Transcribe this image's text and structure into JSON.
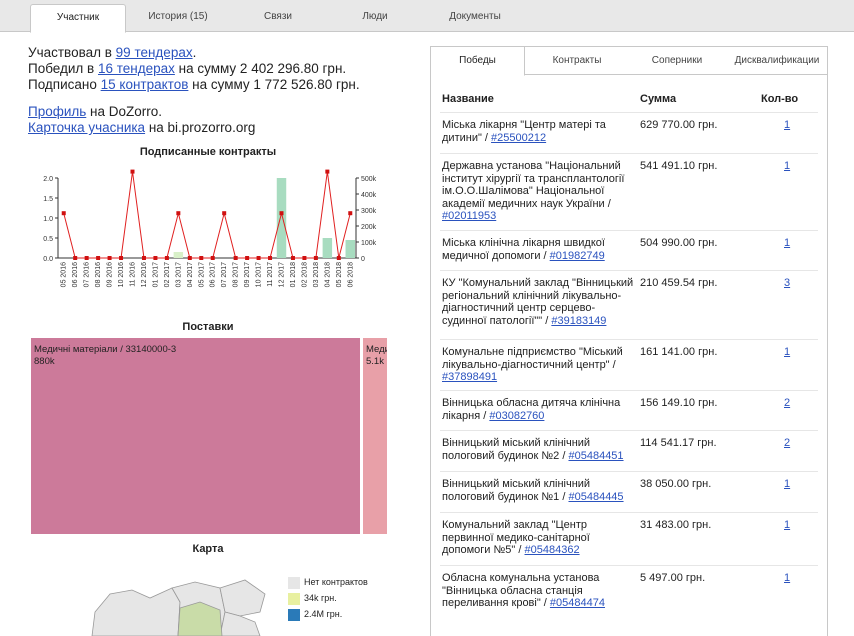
{
  "top_tabs": [
    "Участник",
    "История (15)",
    "Связи",
    "Люди",
    "Документы"
  ],
  "summary": {
    "participated_prefix": "Участвовал в ",
    "participated_link": "99 тендерах",
    "participated_suffix": ".",
    "won_prefix": "Победил в ",
    "won_link": "16 тендерах",
    "won_suffix": " на сумму 2 402 296.80 грн.",
    "signed_prefix": "Подписано ",
    "signed_link": "15 контрактов",
    "signed_suffix": " на сумму 1 772 526.80 грн."
  },
  "links": {
    "profile_link": "Профиль",
    "profile_suffix": " на DoZorro.",
    "card_link": "Карточка учасника",
    "card_suffix": " на bi.prozorro.org"
  },
  "titles": {
    "contracts_chart": "Подписанные контракты",
    "supplies": "Поставки",
    "map": "Карта"
  },
  "chart_data": {
    "type": "bar",
    "categories": [
      "05 2016",
      "06 2016",
      "07 2016",
      "08 2016",
      "09 2016",
      "10 2016",
      "11 2016",
      "12 2016",
      "01 2017",
      "02 2017",
      "03 2017",
      "04 2017",
      "05 2017",
      "06 2017",
      "07 2017",
      "08 2017",
      "09 2017",
      "10 2017",
      "11 2017",
      "12 2017",
      "01 2018",
      "02 2018",
      "03 2018",
      "04 2018",
      "05 2018",
      "06 2018"
    ],
    "series": [
      {
        "type": "bar",
        "axis": "left",
        "values": [
          0,
          0,
          0,
          0,
          0,
          0,
          0,
          0,
          0,
          0,
          0.15,
          0,
          0,
          0,
          0,
          0,
          0,
          0,
          0,
          2,
          0,
          0,
          0,
          0.5,
          0,
          0.45
        ]
      },
      {
        "type": "line",
        "axis": "right",
        "values": [
          280000,
          0,
          0,
          0,
          0,
          0,
          540000,
          0,
          0,
          0,
          280000,
          0,
          0,
          0,
          280000,
          0,
          0,
          0,
          0,
          280000,
          0,
          0,
          0,
          540000,
          0,
          280000
        ]
      }
    ],
    "ylim_left": [
      0,
      2
    ],
    "yticks_left": [
      "0.0",
      "0.5",
      "1.0",
      "1.5",
      "2.0"
    ],
    "ylim_right": [
      0,
      500000
    ],
    "yticks_right": [
      "0",
      "100k",
      "200k",
      "300k",
      "400k",
      "500k"
    ],
    "colors": {
      "bar": "#a8dcc0",
      "bar_light": "#d8f0c8",
      "line": "#e02020",
      "point": "#d01010"
    }
  },
  "treemap": [
    {
      "label": "Медичні матеріали / 33140000-3",
      "value_label": "880k",
      "color": "#cc7a9a"
    },
    {
      "label": "Меди",
      "value_label": "5.1k",
      "color": "#e8a0a8"
    }
  ],
  "map_legend": [
    {
      "label": "Нет контрактов",
      "color": "#e6e6e6"
    },
    {
      "label": "34k грн.",
      "color": "#e8f0a0"
    },
    {
      "label": "2.4M грн.",
      "color": "#2a7ab8"
    }
  ],
  "right_tabs": [
    "Победы",
    "Контракты",
    "Соперники",
    "Дисквалификации"
  ],
  "table": {
    "headers": [
      "Название",
      "Сумма",
      "Кол-во"
    ],
    "rows": [
      {
        "name": "Міська лікарня \"Центр матері та дитини\" / ",
        "code": "#25500212",
        "sum": "629 770.00 грн.",
        "count": "1"
      },
      {
        "name": "Державна установа \"Національний інститут хірургії та трансплантології ім.О.О.Шалімова\" Національної академії медичних наук України / ",
        "code": "#02011953",
        "sum": "541 491.10 грн.",
        "count": "1"
      },
      {
        "name": "Міська клінічна лікарня швидкої медичної допомоги / ",
        "code": "#01982749",
        "sum": "504 990.00 грн.",
        "count": "1"
      },
      {
        "name": "КУ \"Комунальний заклад \"Вінницький регіональний клінічний лікувально-діагностичний центр серцево-судинної патології\"\" / ",
        "code": "#39183149",
        "sum": "210 459.54 грн.",
        "count": "3"
      },
      {
        "name": "Комунальне підприємство \"Міський лікувально-діагностичний центр\" / ",
        "code": "#37898491",
        "sum": "161 141.00 грн.",
        "count": "1"
      },
      {
        "name": "Вінницька обласна дитяча клінічна лікарня / ",
        "code": "#03082760",
        "sum": "156 149.10 грн.",
        "count": "2"
      },
      {
        "name": "Вінницький міський клінічний пологовий будинок №2 / ",
        "code": "#05484451",
        "sum": "114 541.17 грн.",
        "count": "2"
      },
      {
        "name": "Вінницький міський клінічний пологовий будинок №1 / ",
        "code": "#05484445",
        "sum": "38 050.00 грн.",
        "count": "1"
      },
      {
        "name": "Комунальний заклад \"Центр первинної медико-санітарної допомоги №5\" / ",
        "code": "#05484362",
        "sum": "31 483.00 грн.",
        "count": "1"
      },
      {
        "name": "Обласна комунальна установа \"Вінницька обласна станція переливання крові\" / ",
        "code": "#05484474",
        "sum": "5 497.00 грн.",
        "count": "1"
      }
    ]
  }
}
